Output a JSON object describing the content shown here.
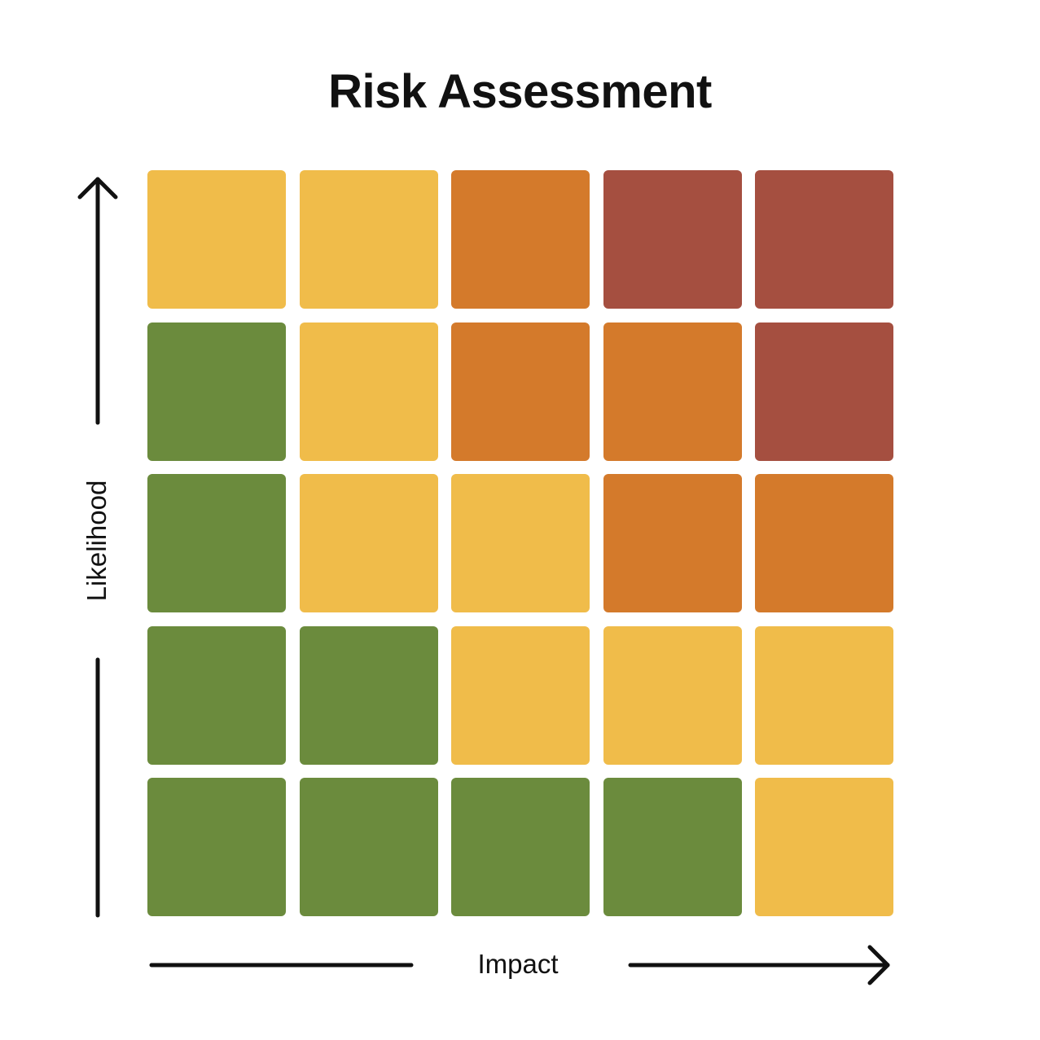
{
  "chart_data": {
    "type": "heatmap",
    "title": "Risk Assessment",
    "xlabel": "Impact",
    "ylabel": "Likelihood",
    "colors": {
      "low": "#6b8b3d",
      "medium": "#f0bc4a",
      "high": "#d47a2b",
      "critical": "#a54f40"
    },
    "rows_top_to_bottom": [
      [
        "medium",
        "medium",
        "high",
        "critical",
        "critical"
      ],
      [
        "low",
        "medium",
        "high",
        "high",
        "critical"
      ],
      [
        "low",
        "medium",
        "medium",
        "high",
        "high"
      ],
      [
        "low",
        "low",
        "medium",
        "medium",
        "medium"
      ],
      [
        "low",
        "low",
        "low",
        "low",
        "medium"
      ]
    ]
  }
}
